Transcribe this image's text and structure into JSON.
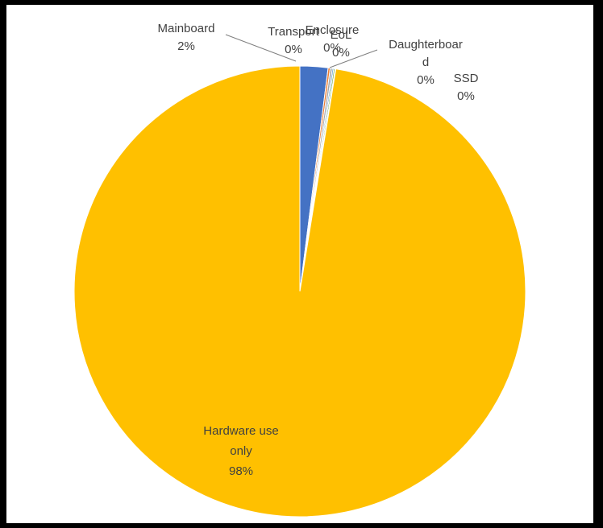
{
  "chart_data": {
    "type": "pie",
    "start_angle_deg": 0,
    "direction": "clockwise",
    "slices": [
      {
        "name": "Mainboard",
        "value": 2,
        "label_lines": [
          "Mainboard",
          "2%"
        ],
        "color": "#4472C4"
      },
      {
        "name": "Transport",
        "value": 0.15,
        "label_lines": [
          "Transport",
          "0%"
        ],
        "color": "#ED7D31"
      },
      {
        "name": "Enclosure",
        "value": 0.15,
        "label_lines": [
          "Enclosure",
          "0%"
        ],
        "color": "#A5A5A5"
      },
      {
        "name": "EoL",
        "value": 0.1,
        "label_lines": [
          "EoL",
          "0%"
        ],
        "color": "#5B9BD5"
      },
      {
        "name": "Daughterboard",
        "value": 0.1,
        "label_lines": [
          "Daughterboar",
          "d",
          "0%"
        ],
        "color": "#70AD47"
      },
      {
        "name": "SSD",
        "value": 0.05,
        "label_lines": [
          "SSD",
          "0%"
        ],
        "color": "#264478"
      },
      {
        "name": "Hardware use only",
        "value": 97.45,
        "label_lines": [
          "Hardware use",
          "only",
          "98%"
        ],
        "color": "#FFC000"
      }
    ]
  }
}
